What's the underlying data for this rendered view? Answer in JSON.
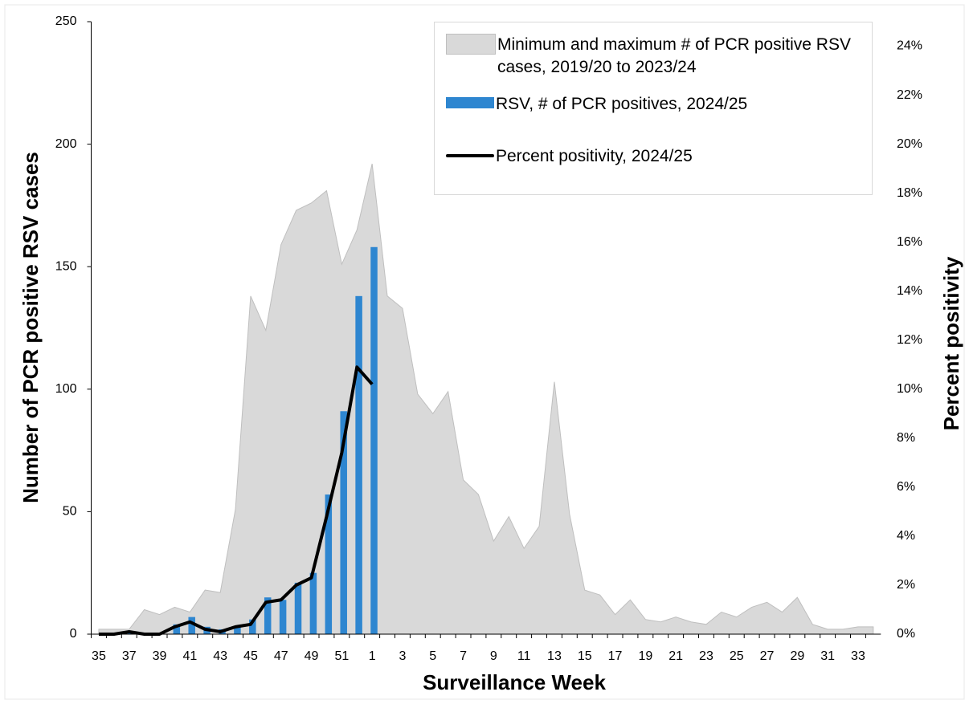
{
  "chart_data": {
    "type": "combo",
    "x_label": "Surveillance Week",
    "y_label": "Number of PCR positive RSV cases",
    "y2_label": "Percent positivity",
    "categories": [
      "35",
      null,
      "37",
      null,
      "39",
      null,
      "41",
      null,
      "43",
      null,
      "45",
      null,
      "47",
      null,
      "49",
      null,
      "51",
      null,
      "1",
      null,
      "3",
      null,
      "5",
      null,
      "7",
      null,
      "9",
      null,
      "11",
      null,
      "13",
      null,
      "15",
      null,
      "17",
      null,
      "19",
      null,
      "21",
      null,
      "23",
      null,
      "25",
      null,
      "27",
      null,
      "29",
      null,
      "31",
      null,
      "33",
      null
    ],
    "series": [
      {
        "name": "Minimum and maximum # of PCR positive RSV cases, 2019/20 to 2023/24",
        "type": "area",
        "color": "#d9d9d9",
        "values": [
          2,
          2,
          2,
          10,
          8,
          11,
          9,
          18,
          17,
          51,
          138,
          124,
          159,
          173,
          176,
          181,
          151,
          165,
          192,
          138,
          133,
          98,
          90,
          99,
          63,
          57,
          38,
          48,
          35,
          44,
          103,
          49,
          18,
          16,
          8,
          14,
          6,
          5,
          7,
          5,
          4,
          9,
          7,
          11,
          13,
          9,
          15,
          4,
          2,
          2,
          3,
          3
        ]
      },
      {
        "name": "RSV, # of PCR positives, 2024/25",
        "type": "bar",
        "color": "#2e86d0",
        "values": [
          0,
          0,
          1,
          0,
          0,
          4,
          7,
          3,
          2,
          3,
          6,
          15,
          14,
          21,
          25,
          57,
          91,
          138,
          158,
          null,
          null,
          null,
          null,
          null,
          null,
          null,
          null,
          null,
          null,
          null,
          null,
          null,
          null,
          null,
          null,
          null,
          null,
          null,
          null,
          null,
          null,
          null,
          null,
          null,
          null,
          null,
          null,
          null,
          null,
          null,
          null,
          null
        ]
      },
      {
        "name": "Percent positivity, 2024/25",
        "type": "line",
        "color": "#000000",
        "axis": "y2",
        "values": [
          0,
          0,
          0.1,
          0,
          0,
          0.3,
          0.5,
          0.2,
          0.1,
          0.3,
          0.4,
          1.3,
          1.4,
          2.0,
          2.3,
          4.8,
          7.4,
          10.9,
          10.2,
          null,
          null,
          null,
          null,
          null,
          null,
          null,
          null,
          null,
          null,
          null,
          null,
          null,
          null,
          null,
          null,
          null,
          null,
          null,
          null,
          null,
          null,
          null,
          null,
          null,
          null,
          null,
          null,
          null,
          null,
          null,
          null,
          null
        ]
      }
    ],
    "ylim": [
      0,
      250
    ],
    "yticks": [
      0,
      50,
      100,
      150,
      200,
      250
    ],
    "y2lim": [
      0,
      25
    ],
    "y2ticks": [
      {
        "value": 0,
        "label": "0%"
      },
      {
        "value": 2,
        "label": "2%"
      },
      {
        "value": 4,
        "label": "4%"
      },
      {
        "value": 6,
        "label": "6%"
      },
      {
        "value": 8,
        "label": "8%"
      },
      {
        "value": 10,
        "label": "10%"
      },
      {
        "value": 12,
        "label": "12%"
      },
      {
        "value": 14,
        "label": "14%"
      },
      {
        "value": 16,
        "label": "16%"
      },
      {
        "value": 18,
        "label": "18%"
      },
      {
        "value": 20,
        "label": "20%"
      },
      {
        "value": 22,
        "label": "22%"
      },
      {
        "value": 24,
        "label": "24%"
      }
    ],
    "legend": "top-right"
  }
}
